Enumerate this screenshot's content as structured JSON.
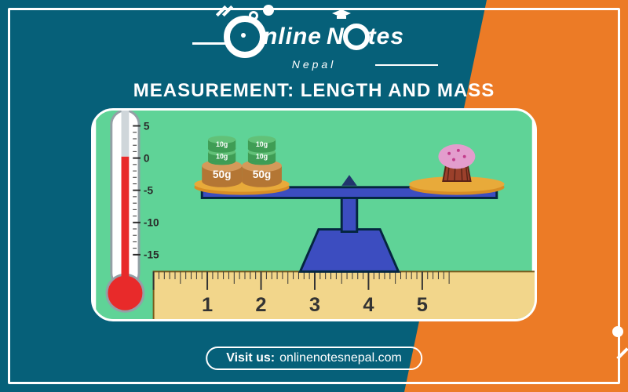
{
  "palette": {
    "teal": "#066079",
    "orange": "#ec7b26",
    "white": "#ffffff",
    "frame": "#ffffff",
    "illus_bg": "#5fd397",
    "illus_border": "#04263f",
    "scale_blue": "#3c4dc0",
    "scale_blue_dark": "#21356d",
    "pan_yellow": "#e8aa3a",
    "pan_yellow2": "#d88d24",
    "ruler_fill": "#f2d68b",
    "ruler_text": "#333333",
    "thermo_red": "#e82a2a",
    "thermo_gray": "#cfd6da",
    "thermo_white": "#ffffff",
    "weight_brown": "#b47634",
    "weight_green": "#3f9d55",
    "cupcake_top": "#e39dcd",
    "cupcake_case": "#9b402b"
  },
  "logo": {
    "line1": "nline",
    "line2_left": "N",
    "line2_right": "tes",
    "tagline": "Nepal"
  },
  "title": "MEASUREMENT: LENGTH AND MASS",
  "visit": {
    "label": "Visit us:",
    "url": "onlinenotesnepal.com"
  },
  "illustration": {
    "thermometer": {
      "scale_marks": [
        5,
        0,
        -5,
        -10,
        -15
      ],
      "mercury_level": 0
    },
    "ruler": {
      "numbers": [
        1,
        2,
        3,
        4,
        5
      ],
      "major_spacing": 70,
      "minor_per_major": 10,
      "height": 70,
      "number_fontsize": 26
    },
    "balance": {
      "left_weights": [
        {
          "label": "50g",
          "color_key": "weight_brown"
        },
        {
          "label": "50g",
          "color_key": "weight_brown"
        }
      ],
      "left_weights_top": [
        {
          "label": "10g",
          "color_key": "weight_green"
        },
        {
          "label": "10g",
          "color_key": "weight_green"
        },
        {
          "label": "10g",
          "color_key": "weight_green"
        },
        {
          "label": "10g",
          "color_key": "weight_green"
        }
      ],
      "right_item": "cupcake"
    }
  }
}
